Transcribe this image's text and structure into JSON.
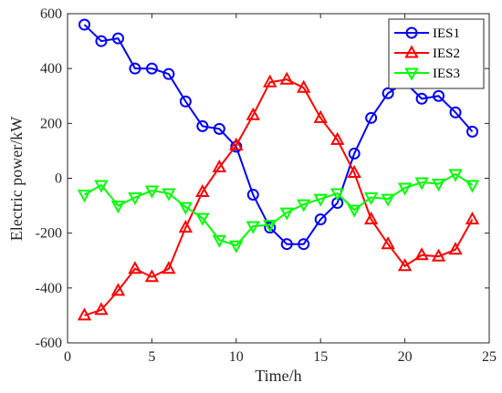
{
  "chart_data": {
    "type": "line",
    "xlabel": "Time/h",
    "ylabel": "Electric power/kW",
    "xlim": [
      0,
      25
    ],
    "ylim": [
      -600,
      600
    ],
    "xticks": [
      0,
      5,
      10,
      15,
      20,
      25
    ],
    "yticks": [
      -600,
      -400,
      -200,
      0,
      200,
      400,
      600
    ],
    "grid": false,
    "legend_position": "top-right",
    "x": [
      1,
      2,
      3,
      4,
      5,
      6,
      7,
      8,
      9,
      10,
      11,
      12,
      13,
      14,
      15,
      16,
      17,
      18,
      19,
      20,
      21,
      22,
      23,
      24
    ],
    "series": [
      {
        "name": "IES1",
        "color": "#0000ff",
        "marker": "circle",
        "values": [
          560,
          500,
          510,
          400,
          400,
          380,
          280,
          190,
          180,
          115,
          -60,
          -180,
          -240,
          -240,
          -150,
          -90,
          90,
          220,
          310,
          350,
          290,
          300,
          240,
          170
        ]
      },
      {
        "name": "IES2",
        "color": "#ff0000",
        "marker": "triangle-up",
        "values": [
          -500,
          -480,
          -410,
          -330,
          -360,
          -330,
          -180,
          -50,
          40,
          120,
          230,
          350,
          360,
          330,
          220,
          140,
          20,
          -150,
          -240,
          -320,
          -280,
          -285,
          -260,
          -150
        ]
      },
      {
        "name": "IES3",
        "color": "#00ff00",
        "marker": "triangle-down",
        "values": [
          -60,
          -25,
          -100,
          -70,
          -45,
          -55,
          -105,
          -145,
          -225,
          -245,
          -175,
          -170,
          -125,
          -95,
          -75,
          -55,
          -115,
          -70,
          -75,
          -35,
          -15,
          -20,
          15,
          -25
        ]
      }
    ]
  }
}
